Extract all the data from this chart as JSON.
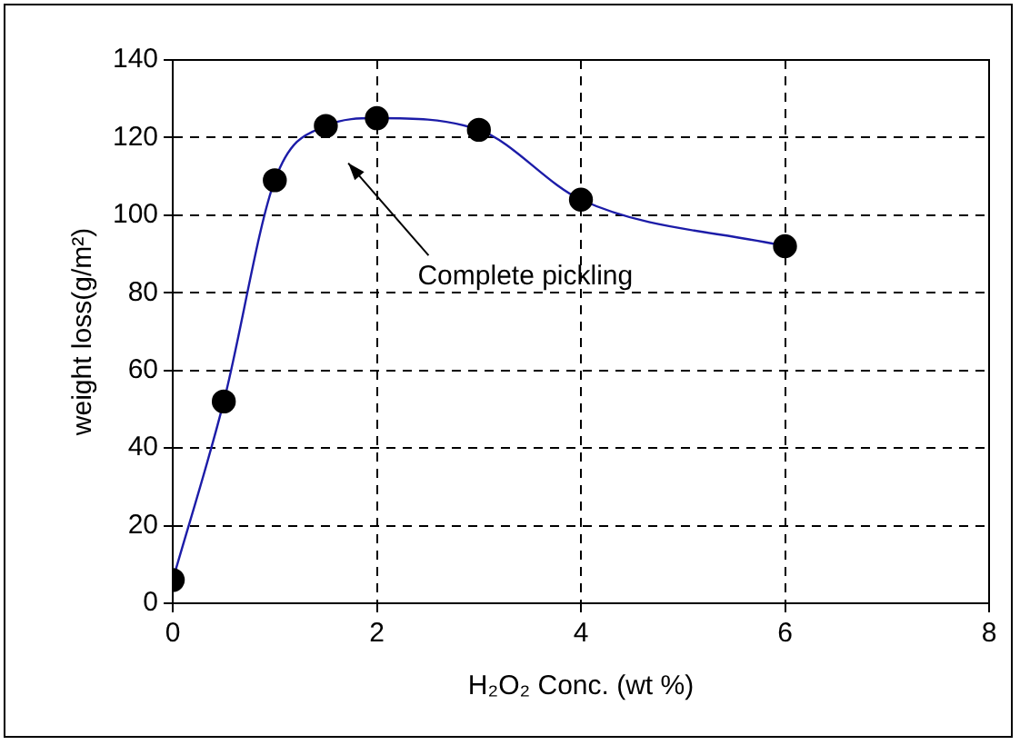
{
  "chart_data": {
    "type": "line",
    "xlabel": "H₂O₂ Conc. (wt %)",
    "ylabel": "weight loss(g/m²)",
    "x": [
      0,
      0.5,
      1,
      1.5,
      2,
      3,
      4,
      6
    ],
    "series": [
      {
        "color": "#1c1ca8",
        "values": [
          6,
          52,
          109,
          123,
          125,
          122,
          104,
          92
        ]
      }
    ],
    "xlim": [
      0,
      8
    ],
    "xticks": [
      0,
      2,
      4,
      6,
      8
    ],
    "ylim": [
      0,
      140
    ],
    "yticks": [
      0,
      20,
      40,
      60,
      80,
      100,
      120,
      140
    ],
    "grid": true,
    "legend": false,
    "marker": "circle",
    "line_style": "solid",
    "annotations": [
      "Complete pickling"
    ]
  }
}
